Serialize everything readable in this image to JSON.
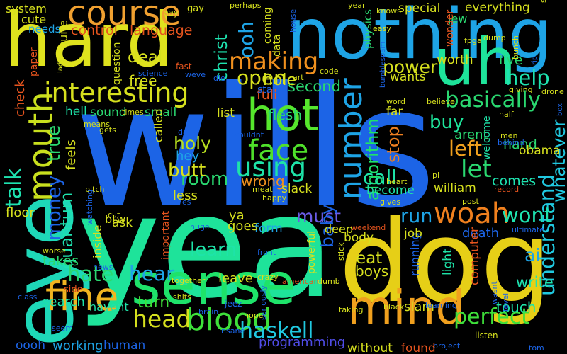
{
  "image": {
    "kind": "word cloud",
    "background": "#000000"
  },
  "words": [
    {
      "text": "wills",
      "color": "#1c64e6"
    },
    {
      "text": "yea",
      "color": "#1ee39a"
    },
    {
      "text": "dog",
      "color": "#e6cf17"
    },
    {
      "text": "hard",
      "color": "#dfe21e"
    },
    {
      "text": "nothing",
      "color": "#1ea4e6"
    },
    {
      "text": "eye",
      "color": "#1ed8b8"
    },
    {
      "text": "sense",
      "color": "#1ee36a"
    },
    {
      "text": "mind",
      "color": "#f0a01e"
    },
    {
      "text": "uh",
      "color": "#1ee39a"
    },
    {
      "text": "course",
      "color": "#f0a030"
    },
    {
      "text": "hot",
      "color": "#56e62c"
    },
    {
      "text": "mouth",
      "color": "#c9e01e"
    },
    {
      "text": "fine",
      "color": "#f0b420"
    },
    {
      "text": "number",
      "color": "#1ea4e6"
    },
    {
      "text": "blood",
      "color": "#3ee03a"
    },
    {
      "text": "face",
      "color": "#4fe02a"
    },
    {
      "text": "interesting",
      "color": "#d6e01e"
    },
    {
      "text": "woah",
      "color": "#f0801e"
    },
    {
      "text": "using",
      "color": "#1ee3a8"
    },
    {
      "text": "making",
      "color": "#f0901e"
    },
    {
      "text": "talk",
      "color": "#1ee3b0"
    },
    {
      "text": "understand",
      "color": "#20c8e0"
    },
    {
      "text": "haskell",
      "color": "#20c8e0"
    },
    {
      "text": "basically",
      "color": "#2ad870"
    },
    {
      "text": "money",
      "color": "#1c64e6"
    },
    {
      "text": "head",
      "color": "#d6e01e"
    },
    {
      "text": "perfect",
      "color": "#3ee03a"
    },
    {
      "text": "algorithm",
      "color": "#1ee36a"
    },
    {
      "text": "quantum",
      "color": "#1ee3b0"
    },
    {
      "text": "ooh",
      "color": "#1ea4e6"
    },
    {
      "text": "let",
      "color": "#2ad870"
    },
    {
      "text": "hate",
      "color": "#2ad870"
    },
    {
      "text": "open",
      "color": "#d6e01e"
    },
    {
      "text": "holy",
      "color": "#b8e01e"
    },
    {
      "text": "room",
      "color": "#2ad870"
    },
    {
      "text": "butt",
      "color": "#d6e01e"
    },
    {
      "text": "learn",
      "color": "#1ee3a8"
    },
    {
      "text": "hear",
      "color": "#1ea4e6"
    },
    {
      "text": "christ",
      "color": "#1ee3b0"
    },
    {
      "text": "call",
      "color": "#1ee3a8"
    },
    {
      "text": "buy",
      "color": "#1ee39a"
    },
    {
      "text": "must",
      "color": "#6a5ce6"
    },
    {
      "text": "true",
      "color": "#2ad870"
    },
    {
      "text": "left",
      "color": "#f0a01e"
    },
    {
      "text": "help",
      "color": "#1ee3b0"
    },
    {
      "text": "wont",
      "color": "#1ee3b0"
    },
    {
      "text": "stop",
      "color": "#f08020"
    },
    {
      "text": "power",
      "color": "#d6e01e"
    },
    {
      "text": "deal",
      "color": "#d6e01e"
    },
    {
      "text": "turn",
      "color": "#3ee03a"
    },
    {
      "text": "baby",
      "color": "#1c64e6"
    },
    {
      "text": "run",
      "color": "#1ea4e6"
    },
    {
      "text": "eat",
      "color": "#d6e01e"
    },
    {
      "text": "whatever",
      "color": "#20c8e0"
    },
    {
      "text": "wrong",
      "color": "#f0901e"
    },
    {
      "text": "control",
      "color": "#e6541e"
    },
    {
      "text": "language",
      "color": "#e6541e"
    },
    {
      "text": "second",
      "color": "#2ad870"
    },
    {
      "text": "hole",
      "color": "#d6e01e"
    },
    {
      "text": "full",
      "color": "#e6541e"
    },
    {
      "text": "flesh",
      "color": "#2ad870"
    },
    {
      "text": "free",
      "color": "#d6e01e"
    },
    {
      "text": "live",
      "color": "#2ad870"
    },
    {
      "text": "worth",
      "color": "#d6e01e"
    },
    {
      "text": "check",
      "color": "#e6541e"
    },
    {
      "text": "feels",
      "color": "#d6e01e"
    },
    {
      "text": "sound",
      "color": "#2ad870"
    },
    {
      "text": "hell",
      "color": "#1ee3a8"
    },
    {
      "text": "small",
      "color": "#2ad870"
    },
    {
      "text": "called",
      "color": "#d6e01e"
    },
    {
      "text": "hey",
      "color": "#1ea4e6"
    },
    {
      "text": "less",
      "color": "#d6e01e"
    },
    {
      "text": "btw",
      "color": "#d6e01e"
    },
    {
      "text": "ask",
      "color": "#d6e01e"
    },
    {
      "text": "inside",
      "color": "#d6e01e"
    },
    {
      "text": "takes",
      "color": "#2ad870"
    },
    {
      "text": "floor",
      "color": "#d6e01e"
    },
    {
      "text": "search",
      "color": "#1ee3a8"
    },
    {
      "text": "havent",
      "color": "#1ee3a8"
    },
    {
      "text": "working",
      "color": "#1ea4e6"
    },
    {
      "text": "human",
      "color": "#1c64e6"
    },
    {
      "text": "oooh",
      "color": "#1c64e6"
    },
    {
      "text": "programming",
      "color": "#4f4ce6"
    },
    {
      "text": "without",
      "color": "#d6e01e"
    },
    {
      "text": "found",
      "color": "#e6541e"
    },
    {
      "text": "slam",
      "color": "#d6e01e"
    },
    {
      "text": "touch",
      "color": "#1ee3a8"
    },
    {
      "text": "write",
      "color": "#1ee3b0"
    },
    {
      "text": "ai",
      "color": "#1ea4e6"
    },
    {
      "text": "death",
      "color": "#1c64e6"
    },
    {
      "text": "light",
      "color": "#1ee3a8"
    },
    {
      "text": "computer",
      "color": "#e6541e"
    },
    {
      "text": "boys",
      "color": "#d6e01e"
    },
    {
      "text": "running",
      "color": "#1c64e6"
    },
    {
      "text": "body",
      "color": "#d6e01e"
    },
    {
      "text": "deep",
      "color": "#d6e01e"
    },
    {
      "text": "job",
      "color": "#d6e01e"
    },
    {
      "text": "leave",
      "color": "#d6e01e"
    },
    {
      "text": "form",
      "color": "#1ea4e6"
    },
    {
      "text": "goes",
      "color": "#d6e01e"
    },
    {
      "text": "ya",
      "color": "#d6e01e"
    },
    {
      "text": "slack",
      "color": "#d6e01e"
    },
    {
      "text": "become",
      "color": "#1ee3a8"
    },
    {
      "text": "william",
      "color": "#d6e01e"
    },
    {
      "text": "comes",
      "color": "#1ee3b0"
    },
    {
      "text": "hand",
      "color": "#2ad870"
    },
    {
      "text": "obama",
      "color": "#d6e01e"
    },
    {
      "text": "arent",
      "color": "#2ad870"
    },
    {
      "text": "far",
      "color": "#d6e01e"
    },
    {
      "text": "wants",
      "color": "#d6e01e"
    },
    {
      "text": "list",
      "color": "#d6e01e"
    },
    {
      "text": "system",
      "color": "#d6e01e"
    },
    {
      "text": "cute",
      "color": "#d6e01e"
    },
    {
      "text": "needs",
      "color": "#1ea4e6"
    },
    {
      "text": "quite",
      "color": "#d6e01e"
    },
    {
      "text": "paper",
      "color": "#e6541e"
    },
    {
      "text": "question",
      "color": "#d6e01e"
    },
    {
      "text": "important",
      "color": "#e6541e"
    },
    {
      "text": "powerful",
      "color": "#d6e01e"
    },
    {
      "text": "physics",
      "color": "#2ad870"
    },
    {
      "text": "data",
      "color": "#d6e01e"
    },
    {
      "text": "coming",
      "color": "#d6e01e"
    },
    {
      "text": "special",
      "color": "#d6e01e"
    },
    {
      "text": "everything",
      "color": "#d6e01e"
    },
    {
      "text": "jew",
      "color": "#2ad870"
    },
    {
      "text": "wonder",
      "color": "#e6541e"
    },
    {
      "text": "state",
      "color": "#1c64e6"
    },
    {
      "text": "welcome",
      "color": "#1ee3a8"
    },
    {
      "text": "gay",
      "color": "#d6e01e"
    },
    {
      "text": "pay",
      "color": "#d6e01e"
    },
    {
      "text": "fast",
      "color": "#e6541e"
    },
    {
      "text": "weve",
      "color": "#1c64e6"
    },
    {
      "text": "science",
      "color": "#1c64e6"
    },
    {
      "text": "lady",
      "color": "#d6e01e"
    },
    {
      "text": "means",
      "color": "#d6e01e"
    },
    {
      "text": "gets",
      "color": "#d6e01e"
    },
    {
      "text": "times",
      "color": "#d6e01e"
    },
    {
      "text": "days",
      "color": "#1c64e6"
    },
    {
      "text": "wouldnt",
      "color": "#1c64e6"
    },
    {
      "text": "meat",
      "color": "#d6e01e"
    },
    {
      "text": "happy",
      "color": "#d6e01e"
    },
    {
      "text": "gives",
      "color": "#d6e01e"
    },
    {
      "text": "movies",
      "color": "#1c64e6"
    },
    {
      "text": "huge",
      "color": "#1c64e6"
    },
    {
      "text": "cut",
      "color": "#d6e01e"
    },
    {
      "text": "watching",
      "color": "#1c64e6"
    },
    {
      "text": "bitch",
      "color": "#d6e01e"
    },
    {
      "text": "worse",
      "color": "#d6e01e"
    },
    {
      "text": "side",
      "color": "#e6541e"
    },
    {
      "text": "class",
      "color": "#1c64e6"
    },
    {
      "text": "seem",
      "color": "#1c64e6"
    },
    {
      "text": "news",
      "color": "#1c64e6"
    },
    {
      "text": "together",
      "color": "#d6e01e"
    },
    {
      "text": "brain",
      "color": "#1c64e6"
    },
    {
      "text": "shits",
      "color": "#d6e01e"
    },
    {
      "text": "jeez",
      "color": "#1c64e6"
    },
    {
      "text": "hope",
      "color": "#d6e01e"
    },
    {
      "text": "insane",
      "color": "#1c64e6"
    },
    {
      "text": "seriously",
      "color": "#1c64e6"
    },
    {
      "text": "crazy",
      "color": "#d6e01e"
    },
    {
      "text": "front",
      "color": "#1c64e6"
    },
    {
      "text": "american",
      "color": "#e6541e"
    },
    {
      "text": "dumb",
      "color": "#d6e01e"
    },
    {
      "text": "stick",
      "color": "#d6e01e"
    },
    {
      "text": "weekend",
      "color": "#e6541e"
    },
    {
      "text": "taking",
      "color": "#d6e01e"
    },
    {
      "text": "black",
      "color": "#d6e01e"
    },
    {
      "text": "learning",
      "color": "#1c64e6"
    },
    {
      "text": "project",
      "color": "#1c64e6"
    },
    {
      "text": "listen",
      "color": "#d6e01e"
    },
    {
      "text": "wasnt",
      "color": "#1c64e6"
    },
    {
      "text": "level",
      "color": "#1c64e6"
    },
    {
      "text": "tom",
      "color": "#1c64e6"
    },
    {
      "text": "ultimate",
      "color": "#1c64e6"
    },
    {
      "text": "record",
      "color": "#e6541e"
    },
    {
      "text": "post",
      "color": "#d6e01e"
    },
    {
      "text": "pi",
      "color": "#d6e01e"
    },
    {
      "text": "heart",
      "color": "#d6e01e"
    },
    {
      "text": "men",
      "color": "#d6e01e"
    },
    {
      "text": "behind",
      "color": "#1c64e6"
    },
    {
      "text": "half",
      "color": "#d6e01e"
    },
    {
      "text": "box",
      "color": "#1c64e6"
    },
    {
      "text": "drone",
      "color": "#d6e01e"
    },
    {
      "text": "giving",
      "color": "#d6e01e"
    },
    {
      "text": "rip",
      "color": "#1c64e6"
    },
    {
      "text": "bunch",
      "color": "#d6e01e"
    },
    {
      "text": "dump",
      "color": "#d6e01e"
    },
    {
      "text": "fpga",
      "color": "#d6e01e"
    },
    {
      "text": "simple",
      "color": "#d6e01e"
    },
    {
      "text": "knows",
      "color": "#d6e01e"
    },
    {
      "text": "easy",
      "color": "#d6e01e"
    },
    {
      "text": "year",
      "color": "#d6e01e"
    },
    {
      "text": "perhaps",
      "color": "#d6e01e"
    },
    {
      "text": "house",
      "color": "#1c64e6"
    },
    {
      "text": "code",
      "color": "#d6e01e"
    },
    {
      "text": "art",
      "color": "#d6e01e"
    },
    {
      "text": "die",
      "color": "#1c64e6"
    },
    {
      "text": "word",
      "color": "#d6e01e"
    },
    {
      "text": "believe",
      "color": "#d6e01e"
    },
    {
      "text": "bumblespam",
      "color": "#1c64e6"
    }
  ]
}
